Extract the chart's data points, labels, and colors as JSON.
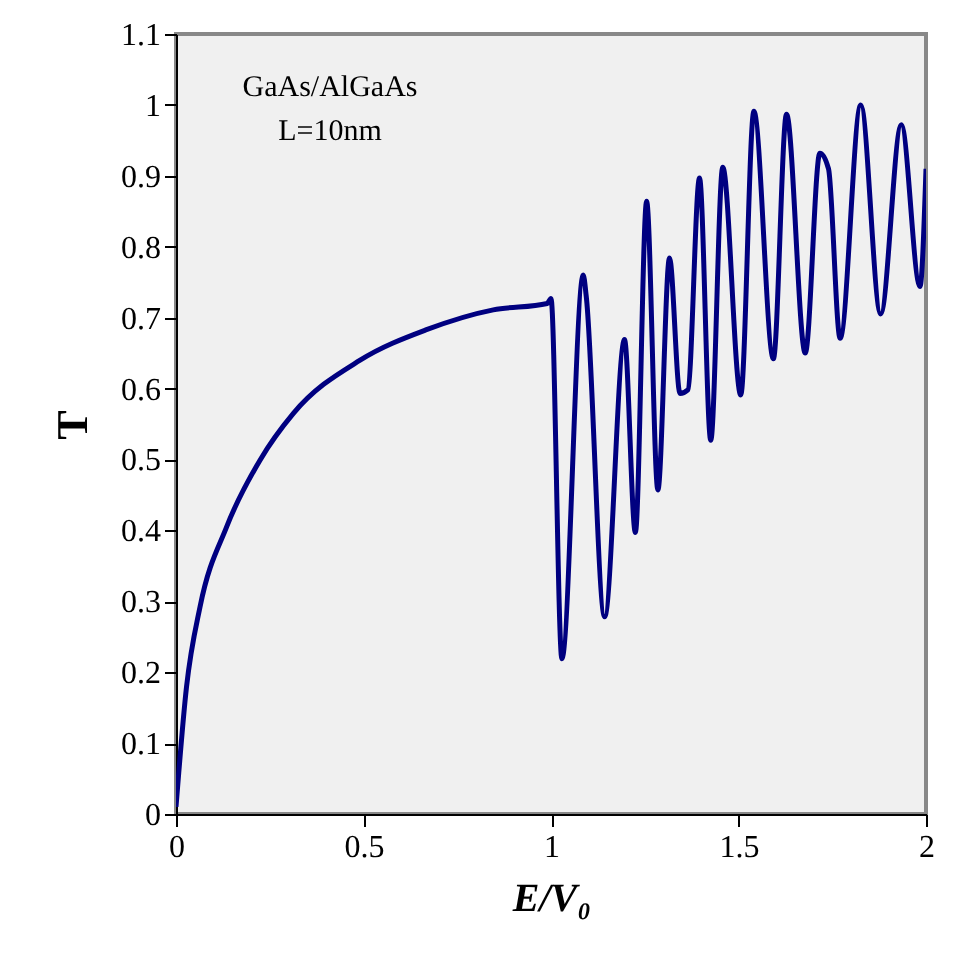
{
  "chart_data": {
    "type": "line",
    "xlabel": "E/V₀",
    "ylabel": "T",
    "annotations": [
      "GaAs/AlGaAs",
      "L=10nm"
    ],
    "x": [
      0.0,
      0.028,
      0.064,
      0.135,
      0.224,
      0.313,
      0.491,
      0.668,
      0.846,
      0.99,
      1.0,
      1.029,
      1.086,
      1.094,
      1.143,
      1.196,
      1.225,
      1.255,
      1.285,
      1.316,
      1.344,
      1.365,
      1.396,
      1.426,
      1.458,
      1.506,
      1.541,
      1.593,
      1.628,
      1.678,
      1.717,
      1.74,
      1.771,
      1.826,
      1.879,
      1.934,
      1.984,
      2.0
    ],
    "series": [
      {
        "color": "#000080",
        "values": [
          0.01,
          0.179,
          0.292,
          0.405,
          0.499,
          0.565,
          0.64,
          0.683,
          0.711,
          0.72,
          0.727,
          0.219,
          0.76,
          0.73,
          0.278,
          0.669,
          0.397,
          0.864,
          0.457,
          0.784,
          0.593,
          0.598,
          0.897,
          0.527,
          0.912,
          0.591,
          0.991,
          0.642,
          0.987,
          0.65,
          0.932,
          0.91,
          0.671,
          1.0,
          0.705,
          0.972,
          0.744,
          0.91
        ]
      }
    ],
    "xlim": [
      0,
      2
    ],
    "xticks": [
      0,
      0.5,
      1,
      1.5,
      2
    ],
    "ylim": [
      0,
      1.1
    ],
    "yticks": [
      0,
      0.1,
      0.2,
      0.3,
      0.4,
      0.5,
      0.6,
      0.7,
      0.8,
      0.9,
      1,
      1.1
    ],
    "grid": false,
    "marker": "none",
    "line_style": "solid"
  }
}
